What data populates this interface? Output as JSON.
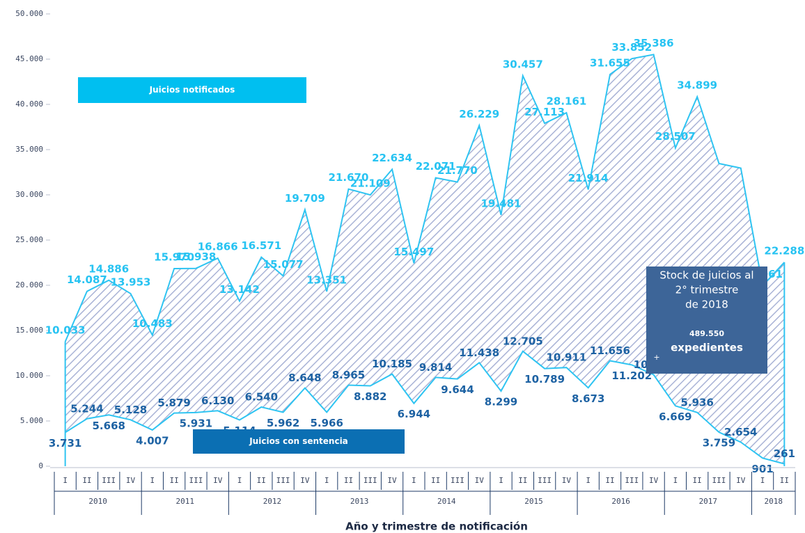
{
  "chart_data": {
    "type": "stacked_area",
    "x_label": "Año y trimestre de notificación",
    "categories": [
      "I",
      "II",
      "III",
      "IV",
      "I",
      "II",
      "III",
      "IV",
      "I",
      "II",
      "III",
      "IV",
      "I",
      "II",
      "III",
      "IV",
      "I",
      "II",
      "III",
      "IV",
      "I",
      "II",
      "III",
      "IV",
      "I",
      "II",
      "III",
      "IV",
      "I",
      "II",
      "III",
      "IV",
      "I",
      "II"
    ],
    "years": [
      "2010",
      "2011",
      "2012",
      "2013",
      "2014",
      "2015",
      "2016",
      "2017",
      "2018"
    ],
    "series": [
      {
        "name": "Juicios con sentencia",
        "color": "#0b6fb3",
        "label_color": "#1d62a3",
        "values": [
          3731,
          5244,
          5668,
          5128,
          4007,
          5879,
          5931,
          6130,
          5114,
          6540,
          5962,
          8648,
          5966,
          8965,
          8882,
          10185,
          6944,
          9814,
          9644,
          11438,
          8299,
          12705,
          10789,
          10911,
          8673,
          11656,
          11202,
          10119,
          6669,
          5936,
          3759,
          2654,
          901,
          261
        ],
        "value_labels": [
          "3.731",
          "5.244",
          "5.668",
          "5.128",
          "4.007",
          "5.879",
          "5.931",
          "6.130",
          "5.114",
          "6.540",
          "5.962",
          "8.648",
          "5.966",
          "8.965",
          "8.882",
          "10.185",
          "6.944",
          "9.814",
          "9.644",
          "11.438",
          "8.299",
          "12.705",
          "10.789",
          "10.911",
          "8.673",
          "11.656",
          "11.202",
          "10.119",
          "6.669",
          "5.936",
          "3.759",
          "2.654",
          "901",
          "261"
        ]
      },
      {
        "name": "Juicios notificados",
        "color": "#00bff0",
        "label_color": "#27c3f2",
        "values": [
          10033,
          14087,
          14886,
          13953,
          10483,
          15970,
          15938,
          16866,
          13142,
          16571,
          15077,
          19709,
          13351,
          21670,
          21109,
          22634,
          15497,
          22071,
          21770,
          26229,
          19481,
          30457,
          27113,
          28161,
          21914,
          31655,
          33852,
          35386,
          28507,
          34899,
          29700,
          30300,
          19061,
          22288
        ],
        "value_labels": [
          "10.033",
          "14.087",
          "14.886",
          "13.953",
          "10.483",
          "15.970",
          "15.938",
          "16.866",
          "13.142",
          "16.571",
          "15.077",
          "19.709",
          "13.351",
          "21.670",
          "21.109",
          "22.634",
          "15.497",
          "22.071",
          "21.770",
          "26.229",
          "19.481",
          "30.457",
          "27.113",
          "28.161",
          "21.914",
          "31.655",
          "33.852",
          "35.386",
          "28.507",
          "34.899",
          null,
          null,
          "19.061",
          "22.288"
        ]
      }
    ],
    "line_color": "#2ec4f2",
    "hatch_color": "#a9b3d6",
    "ylim": [
      0,
      50000
    ],
    "yticks": [
      0,
      {
        "value": 5000,
        "label": "5.000"
      },
      {
        "value": 10000,
        "label": "10.000"
      },
      {
        "value": 15000,
        "label": "15.000"
      },
      {
        "value": 20000,
        "label": "20.000"
      },
      {
        "value": 25000,
        "label": "25.000"
      },
      {
        "value": 30000,
        "label": "30.000"
      },
      {
        "value": 35000,
        "label": "35.000"
      },
      {
        "value": 40000,
        "label": "40.000"
      },
      {
        "value": 45000,
        "label": "45.000"
      },
      {
        "value": 50000,
        "label": "50.000"
      }
    ],
    "stock_box": {
      "lines": [
        "Stock de juicios al",
        "2° trimestre",
        "de 2018"
      ],
      "value": "489.550",
      "unit": "expedientes",
      "marker": "+",
      "color": "#3d6598"
    }
  }
}
